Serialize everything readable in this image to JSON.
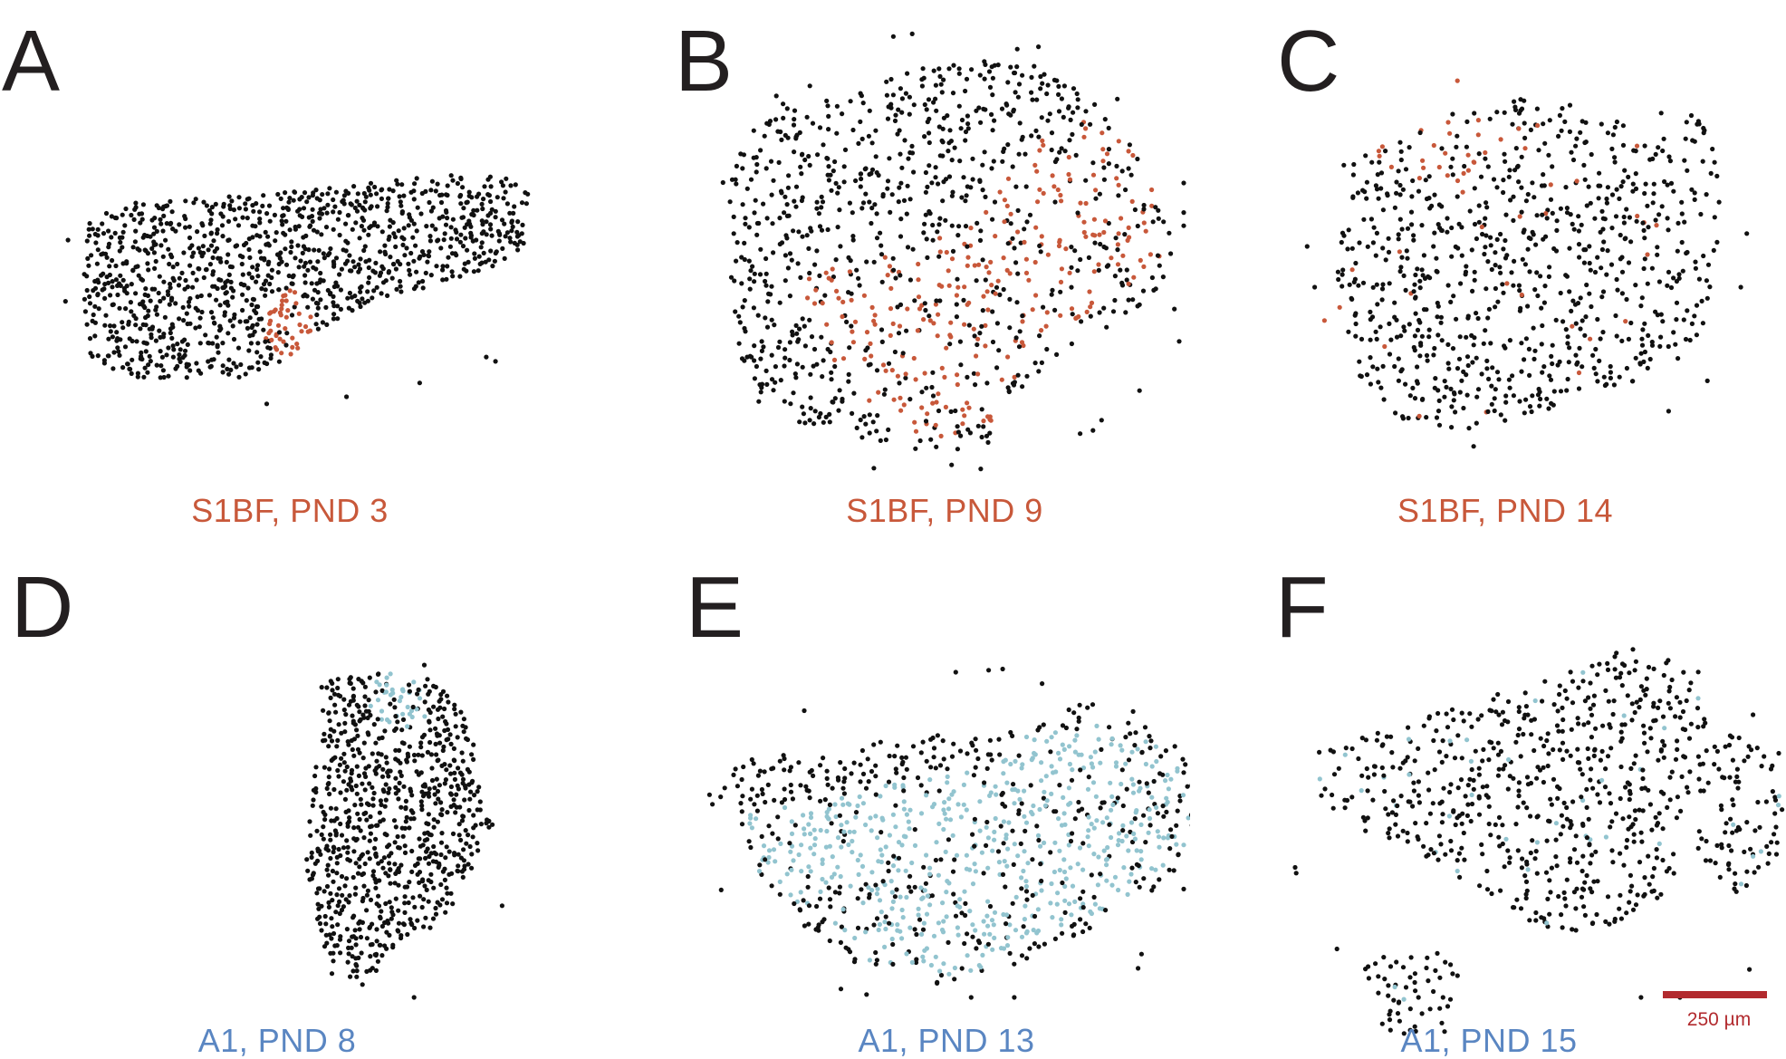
{
  "colors": {
    "cell": "#111111",
    "s1bf_highlight": "#c8583a",
    "a1_highlight": "#92c4cf",
    "s1bf_caption": "#c8583a",
    "a1_caption": "#5a86c2",
    "letter": "#231f20",
    "scalebar": "#b22a2e"
  },
  "panels": [
    {
      "letter": "A",
      "caption": "S1BF, PND 3",
      "highlight_group": "S1BF"
    },
    {
      "letter": "B",
      "caption": "S1BF, PND 9",
      "highlight_group": "S1BF"
    },
    {
      "letter": "C",
      "caption": "S1BF, PND 14",
      "highlight_group": "S1BF"
    },
    {
      "letter": "D",
      "caption": "A1, PND 8",
      "highlight_group": "A1"
    },
    {
      "letter": "E",
      "caption": "A1, PND 13",
      "highlight_group": "A1"
    },
    {
      "letter": "F",
      "caption": "A1, PND 15",
      "highlight_group": "A1"
    }
  ],
  "scalebar": {
    "label": "250 µm",
    "length_um": 250
  }
}
